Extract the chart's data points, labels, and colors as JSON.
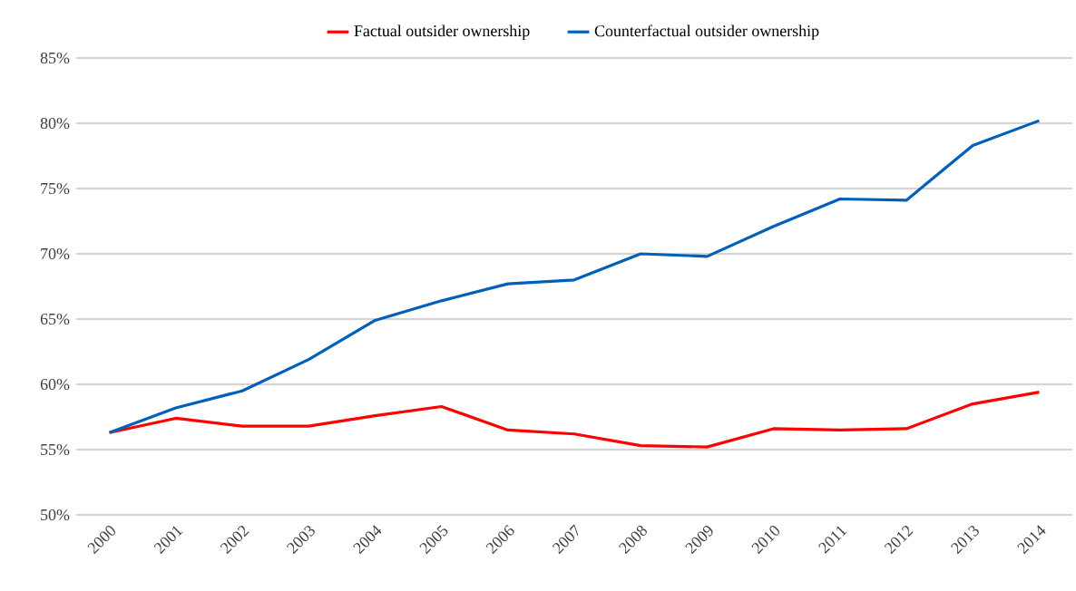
{
  "chart_data": {
    "type": "line",
    "categories": [
      "2000",
      "2001",
      "2002",
      "2003",
      "2004",
      "2005",
      "2006",
      "2007",
      "2008",
      "2009",
      "2010",
      "2011",
      "2012",
      "2013",
      "2014"
    ],
    "series": [
      {
        "name": "Factual outsider ownership",
        "color": "#ff0000",
        "values": [
          56.3,
          57.4,
          56.8,
          56.8,
          57.6,
          58.3,
          56.5,
          56.2,
          55.3,
          55.2,
          56.6,
          56.5,
          56.6,
          58.5,
          59.4
        ]
      },
      {
        "name": "Counterfactual outsider ownership",
        "color": "#0060b8",
        "values": [
          56.3,
          58.2,
          59.5,
          61.9,
          64.9,
          66.4,
          67.7,
          68.0,
          70.0,
          69.8,
          72.1,
          74.2,
          74.1,
          78.3,
          80.2
        ]
      }
    ],
    "ylim": [
      50,
      85
    ],
    "yticks": [
      {
        "value": 50,
        "label": "50%"
      },
      {
        "value": 55,
        "label": "55%"
      },
      {
        "value": 60,
        "label": "60%"
      },
      {
        "value": 65,
        "label": "65%"
      },
      {
        "value": 70,
        "label": "70%"
      },
      {
        "value": 75,
        "label": "75%"
      },
      {
        "value": 80,
        "label": "80%"
      },
      {
        "value": 85,
        "label": "85%"
      }
    ],
    "grid": "y",
    "legend": "top",
    "marker": "none",
    "line_style": "solid"
  }
}
